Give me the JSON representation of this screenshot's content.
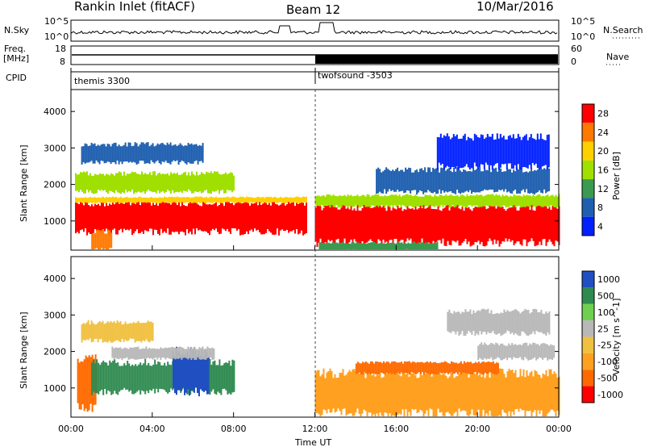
{
  "header": {
    "left": "Rankin Inlet (fitACF)",
    "center": "Beam 12",
    "right": "10/Mar/2016"
  },
  "labels": {
    "nsky": "N.Sky",
    "nsearch": "N.Search",
    "freq": "Freq.",
    "freq_unit": "[MHz]",
    "nave": "Nave",
    "cpid": "CPID",
    "cpid_1": "themis 3300",
    "cpid_2": "twofsound -3503",
    "nsky_top": "10^5",
    "nsky_bot": "10^0",
    "freq_top": "18",
    "freq_bot": "8",
    "nave_top": "60",
    "nave_bot": "0"
  },
  "chart_data": [
    {
      "type": "heatmap",
      "name": "Power",
      "ylabel": "Slant Range [km]",
      "ylim": [
        200,
        4600
      ],
      "yticks": [
        1000,
        2000,
        3000,
        4000
      ],
      "colorbar_label": "Power [dB]",
      "colorbar_ticks": [
        "28",
        "24",
        "20",
        "16",
        "12",
        "8",
        "4"
      ],
      "colors": [
        "#ff0000",
        "#ff7800",
        "#ffd000",
        "#a0e000",
        "#3a9a50",
        "#1f5fb0",
        "#0020ff"
      ],
      "blobs": [
        {
          "t0": 0.2,
          "t1": 11.6,
          "r0": 700,
          "r1": 1500,
          "level": 0
        },
        {
          "t0": 0.2,
          "t1": 11.6,
          "r0": 1500,
          "r1": 1650,
          "level": 2
        },
        {
          "t0": 0.2,
          "t1": 8.0,
          "r0": 1800,
          "r1": 2300,
          "level": 3
        },
        {
          "t0": 0.5,
          "t1": 6.5,
          "r0": 2600,
          "r1": 3100,
          "level": 5
        },
        {
          "t0": 1.0,
          "t1": 2.0,
          "r0": 200,
          "r1": 700,
          "level": 1
        },
        {
          "t0": 12.0,
          "t1": 24.0,
          "r0": 400,
          "r1": 1400,
          "level": 0
        },
        {
          "t0": 12.0,
          "t1": 24.0,
          "r0": 1400,
          "r1": 1700,
          "level": 3
        },
        {
          "t0": 15.0,
          "t1": 23.5,
          "r0": 1800,
          "r1": 2400,
          "level": 5
        },
        {
          "t0": 18.0,
          "t1": 23.5,
          "r0": 2500,
          "r1": 3300,
          "level": 6
        },
        {
          "t0": 12.2,
          "t1": 18.0,
          "r0": 200,
          "r1": 400,
          "level": 4
        }
      ]
    },
    {
      "type": "heatmap",
      "name": "Velocity",
      "ylabel": "Slant Range [km]",
      "xlabel": "Time UT",
      "ylim": [
        200,
        4600
      ],
      "yticks": [
        1000,
        2000,
        3000,
        4000
      ],
      "xticks": [
        "00:00",
        "04:00",
        "08:00",
        "12:00",
        "16:00",
        "20:00",
        "00:00"
      ],
      "colorbar_label": "Velocity [m s^-1]",
      "colorbar_ticks": [
        "1000",
        "500",
        "100",
        "25",
        "-25",
        "-100",
        "-500",
        "-1000"
      ],
      "colors": [
        "#1f4fc0",
        "#2f8a50",
        "#6fd050",
        "#b8b8b8",
        "#f0c040",
        "#ffa020",
        "#ff6a00",
        "#ff0000"
      ],
      "blobs": [
        {
          "t0": 0.3,
          "t1": 1.2,
          "r0": 500,
          "r1": 1800,
          "level": 6
        },
        {
          "t0": 1.0,
          "t1": 6.0,
          "r0": 900,
          "r1": 1700,
          "level": 1
        },
        {
          "t0": 5.0,
          "t1": 6.8,
          "r0": 900,
          "r1": 2000,
          "level": 0
        },
        {
          "t0": 6.8,
          "t1": 8.0,
          "r0": 900,
          "r1": 1700,
          "level": 1
        },
        {
          "t0": 2.0,
          "t1": 7.0,
          "r0": 1800,
          "r1": 2100,
          "level": 3
        },
        {
          "t0": 0.5,
          "t1": 4.0,
          "r0": 2300,
          "r1": 2800,
          "level": 4
        },
        {
          "t0": 12.0,
          "t1": 24.0,
          "r0": 300,
          "r1": 1400,
          "level": 5
        },
        {
          "t0": 14.0,
          "t1": 21.0,
          "r0": 1400,
          "r1": 1700,
          "level": 6
        },
        {
          "t0": 20.0,
          "t1": 23.8,
          "r0": 1800,
          "r1": 2200,
          "level": 3
        },
        {
          "t0": 18.5,
          "t1": 23.5,
          "r0": 2500,
          "r1": 3100,
          "level": 3
        }
      ]
    }
  ]
}
